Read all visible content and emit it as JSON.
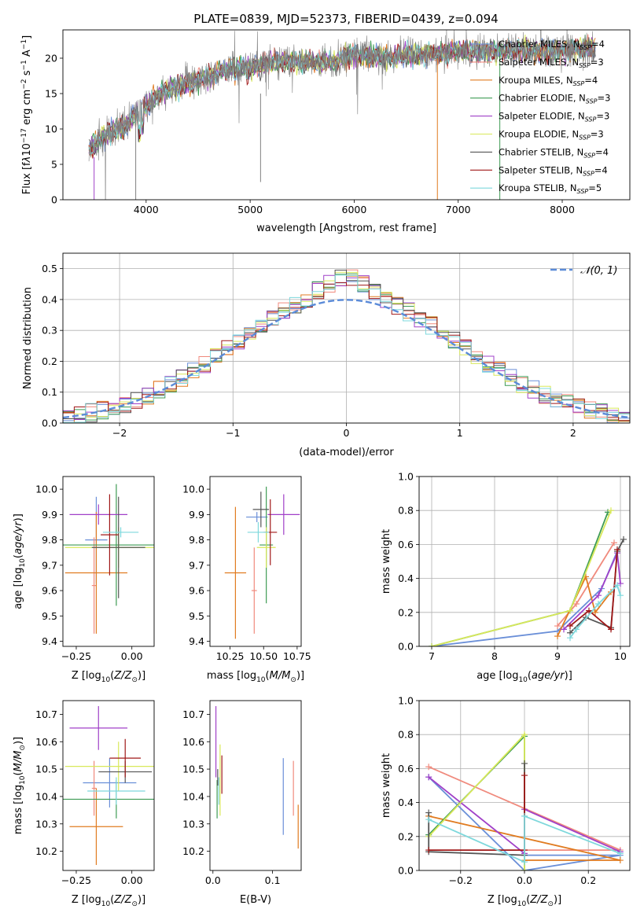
{
  "figure": {
    "title": "PLATE=0839, MJD=52373, FIBERID=0439, z=0.094"
  },
  "models": [
    {
      "name": "Chabrier MILES",
      "nssp": "4",
      "color": "#6a8fd8"
    },
    {
      "name": "Salpeter MILES",
      "nssp": "3",
      "color": "#f08a7d"
    },
    {
      "name": "Kroupa MILES",
      "nssp": "4",
      "color": "#e07b20"
    },
    {
      "name": "Chabrier ELODIE",
      "nssp": "3",
      "color": "#3e9b54"
    },
    {
      "name": "Salpeter ELODIE",
      "nssp": "3",
      "color": "#a040c8"
    },
    {
      "name": "Kroupa ELODIE",
      "nssp": "3",
      "color": "#d8e85a"
    },
    {
      "name": "Chabrier STELIB",
      "nssp": "4",
      "color": "#555555"
    },
    {
      "name": "Salpeter STELIB",
      "nssp": "4",
      "color": "#a01818"
    },
    {
      "name": "Kroupa STELIB",
      "nssp": "5",
      "color": "#7ed8dc"
    }
  ],
  "chart_data": [
    {
      "id": "spectrum",
      "type": "line",
      "xlabel": "wavelength [Angstrom, rest frame]",
      "ylabel_html": "Flux [f<tspan font-style='italic'>λ</tspan>10<tspan dy='-5' font-size='9'>−17</tspan><tspan dy='5'> erg cm</tspan><tspan dy='-5' font-size='9'>−2</tspan><tspan dy='5'> s</tspan><tspan dy='-5' font-size='9'>−1</tspan><tspan dy='5'> A</tspan><tspan dy='-5' font-size='9'>−1</tspan><tspan dy='5'>]</tspan>",
      "xlim": [
        3200,
        8650
      ],
      "ylim": [
        0,
        24
      ],
      "xticks": [
        4000,
        5000,
        6000,
        7000,
        8000
      ],
      "yticks": [
        0,
        5,
        10,
        15,
        20
      ],
      "data_color": "#808080",
      "continuum": {
        "x": [
          3450,
          3600,
          3800,
          4000,
          4200,
          4500,
          4800,
          5000,
          5200,
          5500,
          5800,
          6000,
          6300,
          6600,
          6900,
          7200,
          7500,
          7800,
          8100,
          8300
        ],
        "y": [
          7,
          9,
          10.5,
          13.5,
          15.5,
          17,
          18.5,
          18.5,
          19.5,
          19.5,
          19.5,
          20.5,
          20,
          20.5,
          20.8,
          21,
          21.2,
          21,
          21.3,
          21.5
        ]
      },
      "legend_loc": "upper right"
    },
    {
      "id": "residuals",
      "type": "step",
      "xlabel": "(data-model)/error",
      "ylabel": "Normed distribution",
      "xlim": [
        -2.5,
        2.5
      ],
      "ylim": [
        0,
        0.55
      ],
      "xticks": [
        -2,
        -1,
        0,
        1,
        2
      ],
      "xtick_labels": [
        "−2",
        "−1",
        "0",
        "1",
        "2"
      ],
      "yticks": [
        0.0,
        0.1,
        0.2,
        0.3,
        0.4,
        0.5
      ],
      "ytick_labels": [
        "0.0",
        "0.1",
        "0.2",
        "0.3",
        "0.4",
        "0.5"
      ],
      "grid": true,
      "reference_label": "𝒩(0, 1)",
      "reference_color": "#5b8bd8"
    },
    {
      "id": "z-age",
      "type": "errorbar",
      "xlabel": "Z [log10(Z/Z⊙)]",
      "ylabel": "age [log10(age/yr)]",
      "xlim": [
        -0.31,
        0.1
      ],
      "ylim": [
        9.38,
        10.05
      ],
      "xticks": [
        -0.25,
        0.0
      ],
      "xtick_labels": [
        "−0.25",
        "0.00"
      ],
      "yticks": [
        9.4,
        9.5,
        9.6,
        9.7,
        9.8,
        9.9,
        10.0
      ],
      "ytick_labels": [
        "9.4",
        "9.5",
        "9.6",
        "9.7",
        "9.8",
        "9.9",
        "10.0"
      ],
      "points": [
        {
          "m": 0,
          "x": -0.16,
          "y": 9.8,
          "xerr": 0.05,
          "yerr": 0.17
        },
        {
          "m": 1,
          "x": -0.17,
          "y": 9.62,
          "xerr": 0.01,
          "yerr": 0.19
        },
        {
          "m": 2,
          "x": -0.16,
          "y": 9.67,
          "xerr": 0.14,
          "yerr": 0.24
        },
        {
          "m": 3,
          "x": -0.07,
          "y": 9.78,
          "xerr": 0.24,
          "yerr": 0.24
        },
        {
          "m": 4,
          "x": -0.15,
          "y": 9.9,
          "xerr": 0.13,
          "yerr": 0.04
        },
        {
          "m": 5,
          "x": -0.06,
          "y": 9.77,
          "xerr": 0.24,
          "yerr": 0.08
        },
        {
          "m": 6,
          "x": -0.06,
          "y": 9.77,
          "xerr": 0.12,
          "yerr": 0.2
        },
        {
          "m": 7,
          "x": -0.1,
          "y": 9.82,
          "xerr": 0.04,
          "yerr": 0.16
        },
        {
          "m": 8,
          "x": -0.05,
          "y": 9.83,
          "xerr": 0.08,
          "yerr": 0.02
        }
      ]
    },
    {
      "id": "mass-age",
      "type": "errorbar",
      "xlabel": "mass [log10(M/M⊙)]",
      "xlim": [
        10.1,
        10.78
      ],
      "ylim": [
        9.38,
        10.05
      ],
      "xticks": [
        10.25,
        10.5,
        10.75
      ],
      "xtick_labels": [
        "10.25",
        "10.50",
        "10.75"
      ],
      "yticks": [
        9.4,
        9.5,
        9.6,
        9.7,
        9.8,
        9.9,
        10.0
      ],
      "ytick_labels": [
        "9.4",
        "9.5",
        "9.6",
        "9.7",
        "9.8",
        "9.9",
        "10.0"
      ],
      "points": [
        {
          "m": 0,
          "x": 10.45,
          "y": 9.89,
          "xerr": 0.08,
          "yerr": 0.02
        },
        {
          "m": 1,
          "x": 10.43,
          "y": 9.6,
          "xerr": 0.02,
          "yerr": 0.17
        },
        {
          "m": 2,
          "x": 10.29,
          "y": 9.67,
          "xerr": 0.08,
          "yerr": 0.26
        },
        {
          "m": 3,
          "x": 10.52,
          "y": 9.78,
          "xerr": 0.05,
          "yerr": 0.23
        },
        {
          "m": 4,
          "x": 10.65,
          "y": 9.9,
          "xerr": 0.12,
          "yerr": 0.08
        },
        {
          "m": 5,
          "x": 10.52,
          "y": 9.77,
          "xerr": 0.07,
          "yerr": 0.08
        },
        {
          "m": 6,
          "x": 10.48,
          "y": 9.92,
          "xerr": 0.06,
          "yerr": 0.07
        },
        {
          "m": 7,
          "x": 10.55,
          "y": 9.83,
          "xerr": 0.05,
          "yerr": 0.13
        },
        {
          "m": 8,
          "x": 10.46,
          "y": 9.83,
          "xerr": 0.08,
          "yerr": 0.04
        }
      ]
    },
    {
      "id": "age-weight",
      "type": "line",
      "xlabel": "age [log10(age/yr)]",
      "ylabel": "mass weight",
      "xlim": [
        6.8,
        10.15
      ],
      "ylim": [
        0,
        1.0
      ],
      "xticks": [
        7,
        8,
        9,
        10
      ],
      "xtick_labels": [
        "7",
        "8",
        "9",
        "10"
      ],
      "yticks": [
        0.0,
        0.2,
        0.4,
        0.6,
        0.8,
        1.0
      ],
      "ytick_labels": [
        "0.0",
        "0.2",
        "0.4",
        "0.6",
        "0.8",
        "1.0"
      ],
      "grid": true,
      "series": [
        {
          "m": 0,
          "points": [
            [
              7.0,
              0.0
            ],
            [
              9.0,
              0.09
            ],
            [
              9.7,
              0.34
            ],
            [
              9.95,
              0.56
            ]
          ]
        },
        {
          "m": 1,
          "points": [
            [
              9.0,
              0.12
            ],
            [
              9.3,
              0.25
            ],
            [
              9.9,
              0.61
            ]
          ]
        },
        {
          "m": 2,
          "points": [
            [
              9.0,
              0.06
            ],
            [
              9.45,
              0.41
            ],
            [
              9.6,
              0.2
            ],
            [
              9.85,
              0.32
            ]
          ]
        },
        {
          "m": 3,
          "points": [
            [
              7.0,
              0.0
            ],
            [
              9.2,
              0.21
            ],
            [
              9.8,
              0.79
            ]
          ]
        },
        {
          "m": 4,
          "points": [
            [
              9.1,
              0.1
            ],
            [
              9.65,
              0.3
            ],
            [
              9.95,
              0.55
            ],
            [
              10.0,
              0.37
            ]
          ]
        },
        {
          "m": 5,
          "points": [
            [
              7.0,
              0.0
            ],
            [
              9.2,
              0.21
            ],
            [
              9.85,
              0.8
            ]
          ]
        },
        {
          "m": 6,
          "points": [
            [
              9.2,
              0.08
            ],
            [
              9.45,
              0.17
            ],
            [
              9.85,
              0.11
            ],
            [
              9.95,
              0.56
            ],
            [
              10.05,
              0.63
            ]
          ]
        },
        {
          "m": 7,
          "points": [
            [
              9.2,
              0.12
            ],
            [
              9.5,
              0.21
            ],
            [
              9.85,
              0.1
            ],
            [
              9.95,
              0.57
            ]
          ]
        },
        {
          "m": 8,
          "points": [
            [
              9.2,
              0.05
            ],
            [
              9.3,
              0.1
            ],
            [
              9.65,
              0.25
            ],
            [
              9.95,
              0.36
            ],
            [
              10.0,
              0.3
            ]
          ]
        }
      ]
    },
    {
      "id": "z-mass",
      "type": "errorbar",
      "xlabel": "Z [log10(Z/Z⊙)]",
      "ylabel": "mass [log10(M/M⊙)]",
      "xlim": [
        -0.31,
        0.1
      ],
      "ylim": [
        10.13,
        10.75
      ],
      "xticks": [
        -0.25,
        0.0
      ],
      "xtick_labels": [
        "−0.25",
        "0.00"
      ],
      "yticks": [
        10.2,
        10.3,
        10.4,
        10.5,
        10.6,
        10.7
      ],
      "ytick_labels": [
        "10.2",
        "10.3",
        "10.4",
        "10.5",
        "10.6",
        "10.7"
      ],
      "points": [
        {
          "m": 0,
          "x": -0.1,
          "y": 10.45,
          "xerr": 0.12,
          "yerr": 0.09
        },
        {
          "m": 1,
          "x": -0.17,
          "y": 10.43,
          "xerr": 0.01,
          "yerr": 0.1
        },
        {
          "m": 2,
          "x": -0.16,
          "y": 10.29,
          "xerr": 0.12,
          "yerr": 0.14
        },
        {
          "m": 3,
          "x": -0.07,
          "y": 10.39,
          "xerr": 0.24,
          "yerr": 0.07
        },
        {
          "m": 4,
          "x": -0.15,
          "y": 10.65,
          "xerr": 0.13,
          "yerr": 0.08
        },
        {
          "m": 5,
          "x": -0.06,
          "y": 10.51,
          "xerr": 0.24,
          "yerr": 0.09
        },
        {
          "m": 6,
          "x": -0.03,
          "y": 10.49,
          "xerr": 0.12,
          "yerr": 0.04
        },
        {
          "m": 7,
          "x": -0.03,
          "y": 10.54,
          "xerr": 0.07,
          "yerr": 0.07
        },
        {
          "m": 8,
          "x": -0.07,
          "y": 10.42,
          "xerr": 0.13,
          "yerr": 0.05
        }
      ]
    },
    {
      "id": "ebv-mass",
      "type": "errorbar",
      "xlabel": "E(B-V)",
      "xlim": [
        -0.005,
        0.148
      ],
      "ylim": [
        10.13,
        10.75
      ],
      "xticks": [
        0.0,
        0.1
      ],
      "xtick_labels": [
        "0.0",
        "0.1"
      ],
      "yticks": [
        10.2,
        10.3,
        10.4,
        10.5,
        10.6,
        10.7
      ],
      "ytick_labels": [
        "10.2",
        "10.3",
        "10.4",
        "10.5",
        "10.6",
        "10.7"
      ],
      "points": [
        {
          "m": 0,
          "x": 0.118,
          "y": 10.4,
          "xerr": 0,
          "yerr": 0.14
        },
        {
          "m": 1,
          "x": 0.135,
          "y": 10.43,
          "xerr": 0,
          "yerr": 0.1
        },
        {
          "m": 2,
          "x": 0.143,
          "y": 10.29,
          "xerr": 0,
          "yerr": 0.08
        },
        {
          "m": 3,
          "x": 0.007,
          "y": 10.39,
          "xerr": 0,
          "yerr": 0.07
        },
        {
          "m": 4,
          "x": 0.005,
          "y": 10.6,
          "xerr": 0,
          "yerr": 0.13
        },
        {
          "m": 5,
          "x": 0.012,
          "y": 10.46,
          "xerr": 0,
          "yerr": 0.13
        },
        {
          "m": 6,
          "x": 0.008,
          "y": 10.47,
          "xerr": 0,
          "yerr": 0.03
        },
        {
          "m": 7,
          "x": 0.015,
          "y": 10.48,
          "xerr": 0,
          "yerr": 0.07
        },
        {
          "m": 8,
          "x": 0.01,
          "y": 10.42,
          "xerr": 0,
          "yerr": 0.05
        }
      ]
    },
    {
      "id": "z-weight",
      "type": "line",
      "xlabel": "Z [log10(Z/Z⊙)]",
      "ylabel": "mass weight",
      "xlim": [
        -0.33,
        0.33
      ],
      "ylim": [
        0,
        1.0
      ],
      "xticks": [
        -0.2,
        0.0,
        0.2
      ],
      "xtick_labels": [
        "−0.2",
        "0.0",
        "0.2"
      ],
      "yticks": [
        0.0,
        0.2,
        0.4,
        0.6,
        0.8,
        1.0
      ],
      "ytick_labels": [
        "0.0",
        "0.2",
        "0.4",
        "0.6",
        "0.8",
        "1.0"
      ],
      "grid": true,
      "series": [
        {
          "m": 0,
          "points": [
            [
              -0.3,
              0.55
            ],
            [
              0.0,
              0.0
            ],
            [
              0.3,
              0.09
            ],
            [
              0.0,
              0.09
            ]
          ]
        },
        {
          "m": 1,
          "points": [
            [
              -0.3,
              0.61
            ],
            [
              0.3,
              0.12
            ],
            [
              0.0,
              0.12
            ]
          ]
        },
        {
          "m": 2,
          "points": [
            [
              -0.3,
              0.32
            ],
            [
              0.3,
              0.06
            ],
            [
              0.0,
              0.06
            ]
          ]
        },
        {
          "m": 3,
          "points": [
            [
              -0.3,
              0.21
            ],
            [
              0.0,
              0.79
            ],
            [
              0.0,
              0.0
            ]
          ]
        },
        {
          "m": 4,
          "points": [
            [
              -0.3,
              0.55
            ],
            [
              0.0,
              0.1
            ],
            [
              0.0,
              0.36
            ],
            [
              0.3,
              0.11
            ]
          ]
        },
        {
          "m": 5,
          "points": [
            [
              -0.3,
              0.2
            ],
            [
              0.0,
              0.8
            ],
            [
              0.0,
              0.0
            ]
          ]
        },
        {
          "m": 6,
          "points": [
            [
              -0.3,
              0.34
            ],
            [
              -0.3,
              0.11
            ],
            [
              0.0,
              0.09
            ],
            [
              0.0,
              0.63
            ]
          ]
        },
        {
          "m": 7,
          "points": [
            [
              -0.3,
              0.12
            ],
            [
              0.0,
              0.12
            ],
            [
              0.0,
              0.56
            ]
          ]
        },
        {
          "m": 8,
          "points": [
            [
              -0.3,
              0.3
            ],
            [
              0.0,
              0.05
            ],
            [
              0.0,
              0.32
            ],
            [
              0.3,
              0.1
            ]
          ]
        }
      ]
    }
  ]
}
